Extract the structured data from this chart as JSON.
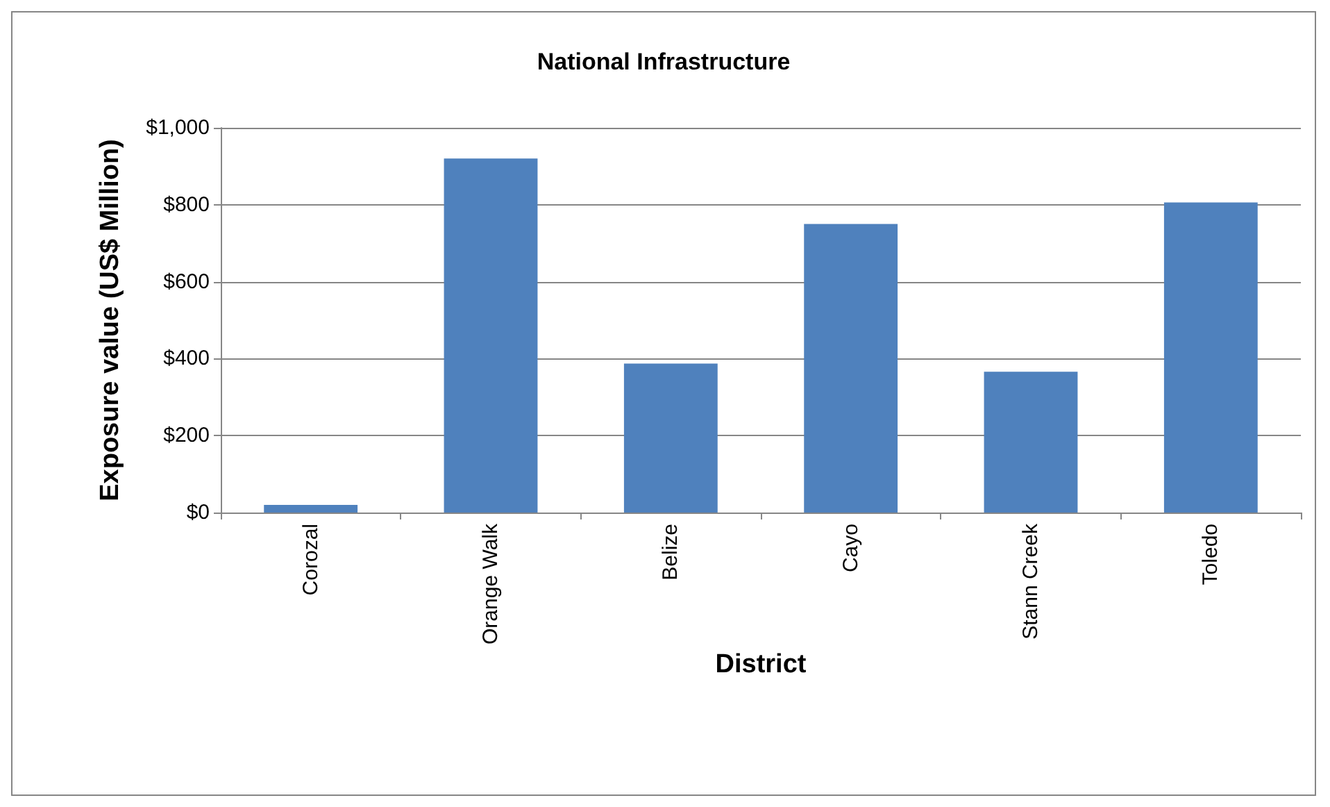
{
  "chart_data": {
    "type": "bar",
    "title": "National Infrastructure",
    "xlabel": "District",
    "ylabel": "Exposure value (US$ Million)",
    "categories": [
      "Corozal",
      "Orange Walk",
      "Belize",
      "Cayo",
      "Stann Creek",
      "Toledo"
    ],
    "values": [
      20,
      920,
      387,
      750,
      366,
      806
    ],
    "color": "#4f81bd",
    "ylim": [
      0,
      1000
    ],
    "yticks": [
      {
        "value": 0,
        "label": "$0"
      },
      {
        "value": 200,
        "label": "$200"
      },
      {
        "value": 400,
        "label": "$400"
      },
      {
        "value": 600,
        "label": "$600"
      },
      {
        "value": 800,
        "label": "$800"
      },
      {
        "value": 1000,
        "label": "$1,000"
      }
    ],
    "grid": "y"
  }
}
